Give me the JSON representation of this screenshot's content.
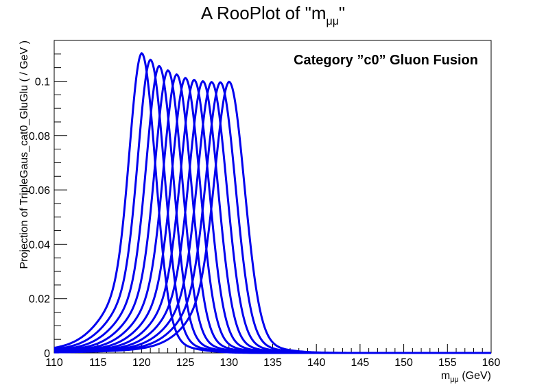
{
  "chart_data": {
    "type": "line",
    "title_main": "A RooPlot of \"m",
    "title_sub": "μμ",
    "title_end": "\"",
    "xlabel_main": "m",
    "xlabel_sub": "μμ",
    "xlabel_end": " (GeV)",
    "ylabel": "Projection of TripleGaus_cat0_GluGlu ( / GeV )",
    "annotation": "Category ”c0” Gluon Fusion",
    "xlim": [
      110,
      160
    ],
    "ylim": [
      0,
      0.115
    ],
    "x_ticks": [
      110,
      115,
      120,
      125,
      130,
      135,
      140,
      145,
      150,
      155,
      160
    ],
    "x_tick_labels": [
      "110",
      "115",
      "120",
      "125",
      "130",
      "135",
      "140",
      "145",
      "150",
      "155",
      "160"
    ],
    "y_ticks": [
      0,
      0.02,
      0.04,
      0.06,
      0.08,
      0.1
    ],
    "y_tick_labels": [
      "0",
      "0.02",
      "0.04",
      "0.06",
      "0.08",
      "0.1"
    ],
    "grid": false,
    "line_color": "#0000ee",
    "series": [
      {
        "mass": 120,
        "peak": 0.1103
      },
      {
        "mass": 121,
        "peak": 0.1079
      },
      {
        "mass": 122,
        "peak": 0.1056
      },
      {
        "mass": 123,
        "peak": 0.104
      },
      {
        "mass": 124,
        "peak": 0.1025
      },
      {
        "mass": 125,
        "peak": 0.1012
      },
      {
        "mass": 126,
        "peak": 0.1005
      },
      {
        "mass": 127,
        "peak": 0.1
      },
      {
        "mass": 128,
        "peak": 0.0997
      },
      {
        "mass": 129,
        "peak": 0.0996
      },
      {
        "mass": 130,
        "peak": 0.0998
      }
    ]
  }
}
